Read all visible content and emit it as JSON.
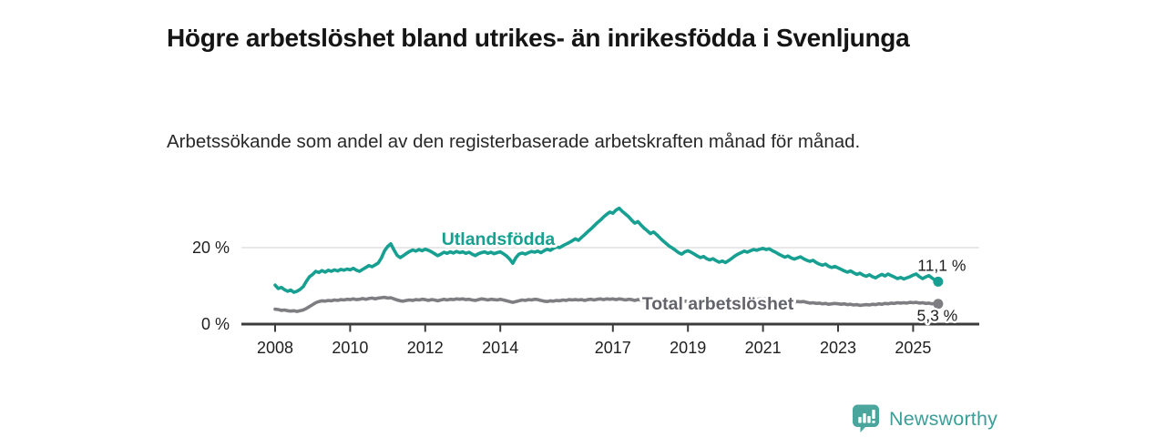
{
  "header": {
    "title": "Högre arbetslöshet bland utrikes- än inrikesfödda i Svenljunga",
    "subtitle": "Arbetssökande som andel av den registerbaserade arbetskraften månad för månad."
  },
  "chart_data": {
    "type": "line",
    "title": "Högre arbetslöshet bland utrikes- än inrikesfödda i Svenljunga",
    "subtitle": "Arbetssökande som andel av den registerbaserade arbetskraften månad för månad.",
    "x_unit": "month",
    "x_start_year": 2008,
    "x_end": "2025-09",
    "ylim": [
      0,
      32
    ],
    "grid": "y gridline at 20 only",
    "legend_position": "inline series labels",
    "x_ticks": [
      {
        "year": 2008,
        "label": "2008"
      },
      {
        "year": 2010,
        "label": "2010"
      },
      {
        "year": 2012,
        "label": "2012"
      },
      {
        "year": 2014,
        "label": "2014"
      },
      {
        "year": 2017,
        "label": "2017"
      },
      {
        "year": 2019,
        "label": "2019"
      },
      {
        "year": 2021,
        "label": "2021"
      },
      {
        "year": 2023,
        "label": "2023"
      },
      {
        "year": 2025,
        "label": "2025"
      }
    ],
    "y_ticks": [
      {
        "value": 0,
        "label": "0 %"
      },
      {
        "value": 20,
        "label": "20 %"
      }
    ],
    "colors": {
      "axis": "#3c3c3c",
      "grid": "#d9d9d9",
      "tick_text": "#1f1f1f",
      "end_label_text": "#1c1c1c"
    },
    "series": [
      {
        "name": "Utlandsfödda",
        "color": "#17a091",
        "label_color": "#17a091",
        "end_label": "11,1 %",
        "end_value": 11.1,
        "values": [
          10.2,
          9.3,
          9.6,
          9.0,
          8.6,
          8.9,
          8.3,
          8.6,
          9.1,
          9.8,
          11.2,
          12.4,
          13.0,
          13.8,
          13.5,
          14.0,
          13.6,
          14.1,
          13.8,
          14.2,
          13.9,
          14.3,
          14.1,
          14.4,
          14.2,
          14.6,
          14.1,
          13.8,
          14.3,
          14.8,
          15.3,
          15.0,
          15.5,
          16.0,
          17.3,
          19.2,
          20.3,
          21.0,
          19.4,
          18.0,
          17.4,
          17.9,
          18.5,
          19.0,
          19.4,
          19.1,
          19.5,
          19.2,
          19.6,
          19.3,
          18.9,
          18.4,
          17.9,
          18.3,
          18.8,
          18.5,
          18.9,
          18.6,
          19.0,
          18.7,
          18.9,
          18.5,
          18.8,
          18.3,
          17.9,
          18.4,
          18.7,
          18.9,
          18.5,
          18.8,
          18.4,
          18.7,
          18.9,
          18.4,
          17.8,
          17.0,
          15.9,
          17.4,
          18.3,
          18.6,
          18.3,
          18.7,
          19.0,
          18.8,
          19.1,
          18.7,
          19.2,
          19.6,
          19.3,
          19.8,
          20.2,
          20.0,
          20.5,
          20.9,
          21.3,
          21.8,
          22.3,
          21.9,
          22.7,
          23.4,
          24.2,
          24.9,
          25.7,
          26.5,
          27.2,
          28.0,
          28.7,
          29.3,
          29.0,
          29.8,
          30.3,
          29.5,
          28.8,
          28.1,
          27.2,
          26.4,
          26.8,
          25.9,
          25.1,
          24.4,
          23.7,
          24.1,
          23.4,
          22.6,
          21.8,
          21.1,
          20.4,
          19.9,
          19.3,
          18.7,
          18.3,
          18.9,
          19.2,
          18.8,
          18.3,
          17.8,
          17.4,
          17.7,
          17.1,
          16.8,
          17.1,
          16.6,
          16.2,
          16.5,
          16.1,
          16.6,
          17.2,
          17.8,
          18.3,
          18.7,
          19.1,
          18.8,
          19.2,
          19.5,
          19.3,
          19.6,
          19.8,
          19.5,
          19.7,
          19.2,
          18.8,
          18.3,
          17.9,
          17.5,
          17.8,
          17.3,
          17.0,
          17.3,
          17.6,
          17.1,
          16.7,
          16.4,
          16.7,
          16.1,
          15.7,
          15.4,
          15.7,
          15.1,
          14.8,
          15.1,
          14.7,
          14.3,
          13.9,
          13.6,
          13.9,
          13.4,
          13.0,
          13.3,
          12.8,
          12.5,
          12.9,
          12.4,
          12.1,
          12.6,
          13.0,
          12.6,
          13.1,
          12.7,
          12.3,
          11.9,
          12.2,
          11.8,
          12.1,
          12.4,
          12.8,
          13.1,
          12.4,
          11.9,
          12.3,
          12.7,
          12.1,
          11.5,
          11.1
        ]
      },
      {
        "name": "Total arbetslöshet",
        "color": "#7d7d82",
        "label_color": "#63636b",
        "end_label": "5,3 %",
        "end_value": 5.3,
        "values": [
          3.9,
          3.8,
          3.6,
          3.7,
          3.5,
          3.4,
          3.5,
          3.3,
          3.5,
          3.7,
          4.1,
          4.6,
          5.1,
          5.6,
          5.9,
          6.1,
          6.0,
          6.2,
          6.1,
          6.3,
          6.2,
          6.4,
          6.3,
          6.5,
          6.4,
          6.6,
          6.4,
          6.5,
          6.7,
          6.5,
          6.7,
          6.8,
          6.6,
          6.8,
          6.9,
          7.0,
          6.8,
          6.9,
          6.6,
          6.3,
          6.1,
          6.0,
          6.2,
          6.3,
          6.2,
          6.4,
          6.3,
          6.5,
          6.4,
          6.2,
          6.4,
          6.3,
          6.1,
          6.3,
          6.5,
          6.3,
          6.5,
          6.4,
          6.6,
          6.5,
          6.6,
          6.4,
          6.5,
          6.3,
          6.2,
          6.4,
          6.6,
          6.5,
          6.3,
          6.5,
          6.4,
          6.3,
          6.5,
          6.3,
          6.1,
          5.9,
          5.7,
          5.9,
          6.1,
          6.3,
          6.2,
          6.4,
          6.3,
          6.5,
          6.4,
          6.2,
          6.0,
          5.9,
          6.1,
          6.0,
          6.2,
          6.1,
          6.3,
          6.2,
          6.4,
          6.3,
          6.4,
          6.3,
          6.4,
          6.2,
          6.4,
          6.5,
          6.3,
          6.5,
          6.6,
          6.4,
          6.6,
          6.5,
          6.6,
          6.4,
          6.6,
          6.5,
          6.3,
          6.5,
          6.4,
          6.2,
          6.4,
          6.3,
          6.1,
          6.3,
          6.2,
          6.0,
          6.1,
          5.9,
          6.0,
          5.8,
          6.0,
          5.9,
          6.1,
          6.0,
          5.8,
          6.0,
          5.9,
          6.1,
          5.9,
          5.8,
          5.6,
          5.8,
          5.7,
          5.5,
          5.7,
          5.6,
          5.4,
          5.6,
          5.5,
          5.7,
          6.0,
          6.3,
          6.5,
          6.4,
          6.6,
          6.5,
          6.3,
          6.5,
          6.4,
          6.6,
          6.5,
          6.6,
          6.4,
          6.5,
          6.3,
          6.1,
          6.2,
          6.0,
          5.9,
          6.0,
          5.8,
          5.9,
          5.8,
          5.9,
          5.7,
          5.5,
          5.6,
          5.4,
          5.5,
          5.3,
          5.4,
          5.2,
          5.3,
          5.4,
          5.3,
          5.2,
          5.3,
          5.1,
          5.2,
          5.0,
          5.1,
          4.9,
          5.0,
          5.1,
          5.0,
          5.2,
          5.1,
          5.3,
          5.2,
          5.4,
          5.3,
          5.5,
          5.4,
          5.6,
          5.5,
          5.6,
          5.5,
          5.7,
          5.6,
          5.7,
          5.5,
          5.6,
          5.4,
          5.5,
          5.3,
          5.4,
          5.3
        ]
      }
    ]
  },
  "footer": {
    "brand": "Newsworthy",
    "brand_color": "#3b9e98",
    "logo_icon": "speech-bubble-bar-chart-icon"
  }
}
